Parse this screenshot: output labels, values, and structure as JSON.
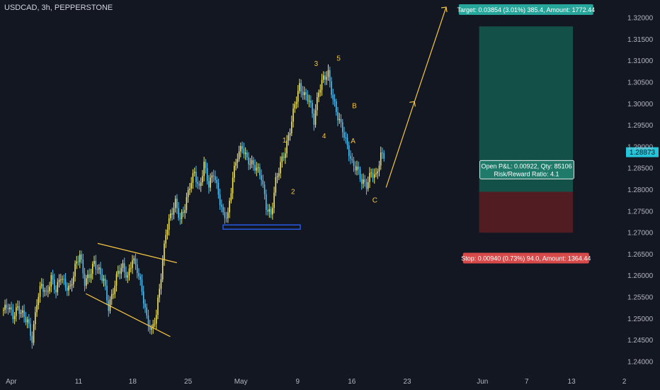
{
  "chart_data": {
    "type": "candlestick",
    "title": "USDCAD, 3h, PEPPERSTONE",
    "ylim": [
      1.2375,
      1.3225
    ],
    "y_ticks": [
      "1.32000",
      "1.31500",
      "1.31000",
      "1.30500",
      "1.30000",
      "1.29500",
      "1.29000",
      "1.28500",
      "1.28000",
      "1.27500",
      "1.27000",
      "1.26500",
      "1.26000",
      "1.25500",
      "1.25000",
      "1.24500",
      "1.24000"
    ],
    "x_ticks": [
      "Apr",
      "11",
      "18",
      "25",
      "May",
      "9",
      "16",
      "23",
      "Jun",
      "7",
      "13",
      "2"
    ],
    "current_price": "1.28873",
    "current_price_color": "#26c6da",
    "up_color": "#f5e85a",
    "down_color": "#4fc3f7",
    "series": [
      {
        "values": [
          1.252,
          1.253,
          1.2505,
          1.2525,
          1.251,
          1.2495,
          1.245,
          1.254,
          1.258,
          1.2555,
          1.2595,
          1.2565,
          1.26,
          1.2575,
          1.257,
          1.262,
          1.265,
          1.2585,
          1.26,
          1.263,
          1.261,
          1.259,
          1.2525,
          1.2565,
          1.261,
          1.262,
          1.2595,
          1.264,
          1.2615,
          1.2565,
          1.25,
          1.247,
          1.251,
          1.26,
          1.27,
          1.274,
          1.277,
          1.273,
          1.276,
          1.281,
          1.284,
          1.28,
          1.286,
          1.281,
          1.284,
          1.279,
          1.274,
          1.274,
          1.283,
          1.288,
          1.29,
          1.287,
          1.286,
          1.285,
          1.283,
          1.276,
          1.274,
          1.282,
          1.286,
          1.289,
          1.294,
          1.3,
          1.304,
          1.302,
          1.301,
          1.296,
          1.303,
          1.306,
          1.307,
          1.301,
          1.297,
          1.294,
          1.29,
          1.286,
          1.285,
          1.282,
          1.281,
          1.284,
          1.283,
          1.288
        ]
      }
    ],
    "triangle_lines": [
      {
        "x": [
          0.148,
          0.268
        ],
        "y": [
          1.2675,
          1.263
        ]
      },
      {
        "x": [
          0.13,
          0.258
        ],
        "y": [
          1.2558,
          1.2458
        ]
      }
    ],
    "support_box": {
      "x": [
        0.338,
        0.455
      ],
      "y": [
        1.2718,
        1.2708
      ],
      "color": "#2962ff"
    },
    "projection": {
      "x": [
        0.585,
        0.628,
        0.676
      ],
      "y": [
        1.2805,
        1.3005,
        1.3225
      ]
    },
    "waves": [
      {
        "label": "1",
        "x": 0.431,
        "y": 1.291
      },
      {
        "label": "2",
        "x": 0.444,
        "y": 1.279
      },
      {
        "label": "3",
        "x": 0.479,
        "y": 1.3088
      },
      {
        "label": "4",
        "x": 0.491,
        "y": 1.292
      },
      {
        "label": "5",
        "x": 0.513,
        "y": 1.31
      },
      {
        "label": "A",
        "x": 0.535,
        "y": 1.2908
      },
      {
        "label": "B",
        "x": 0.537,
        "y": 1.299
      },
      {
        "label": "C",
        "x": 0.568,
        "y": 1.277
      }
    ],
    "target_zone": {
      "top": 1.318,
      "bottom": 1.2795,
      "color": "#145c4f"
    },
    "stop_zone": {
      "top": 1.2795,
      "bottom": 1.27,
      "color": "#5a1d23"
    },
    "target_label": "Target: 0.03854 (3.01%) 385.4, Amount: 1772.44",
    "stop_label": "Stop: 0.00940 (0.73%) 94.0, Amount: 1364.44",
    "position_label_1": "Open P&L: 0.00922, Qty: 85106",
    "position_label_2": "Risk/Reward Ratio: 4.1"
  }
}
